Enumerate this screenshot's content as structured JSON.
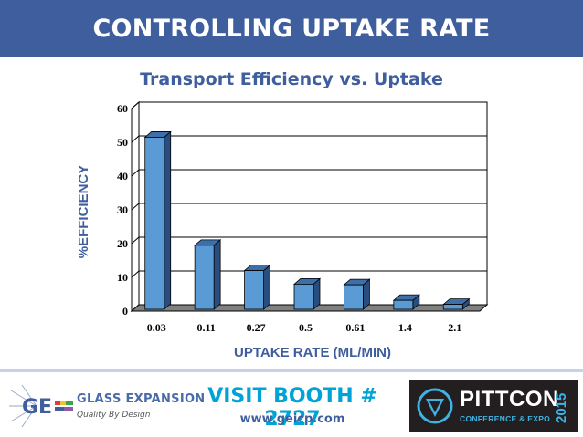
{
  "header": {
    "title": "CONTROLLING UPTAKE RATE"
  },
  "chart_data": {
    "type": "bar",
    "title": "Transport Efficiency vs. Uptake",
    "xlabel": "UPTAKE RATE (ML/MIN)",
    "ylabel": "%EFFICIENCY",
    "categories": [
      "0.03",
      "0.11",
      "0.27",
      "0.5",
      "0.61",
      "1.4",
      "2.1"
    ],
    "values": [
      51.5,
      19.5,
      12,
      8,
      7.8,
      3.2,
      2
    ],
    "ylim": [
      0,
      60
    ],
    "yticks": [
      "0",
      "10",
      "20",
      "30",
      "40",
      "50",
      "60"
    ],
    "grid": true,
    "bar_color": "#5b9bd5",
    "bar_side_color": "#2a4d80",
    "bar_top_color": "#3d6fa8"
  },
  "footer": {
    "logo_mark": "GE",
    "company": "GLASS EXPANSION",
    "tagline": "Quality By Design",
    "booth": "VISIT BOOTH # 2727",
    "url": "www.geicp.com",
    "event_name": "PITTCON",
    "event_sub": "CONFERENCE & EXPO",
    "event_year": "2015"
  }
}
